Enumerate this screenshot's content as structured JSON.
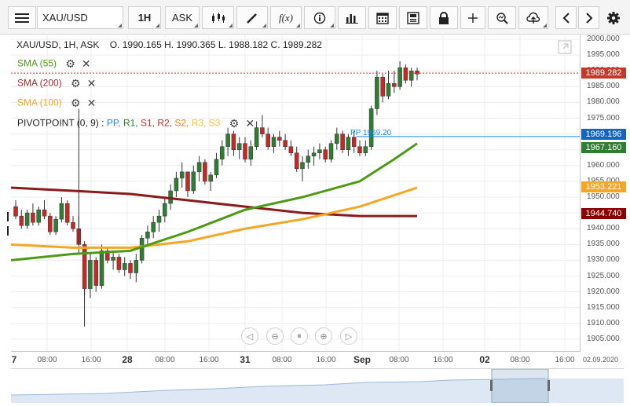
{
  "toolbar": {
    "menu_icon": "hamburger-icon",
    "symbol": "XAU/USD",
    "timeframe": "1H",
    "price_type": "ASK",
    "buttons": [
      "candles-icon",
      "draw-pen-icon",
      "fx-indicators-icon",
      "info-icon",
      "bar-chart-icon",
      "calendar-icon",
      "save-icon",
      "lock-icon",
      "crosshair-icon",
      "zoom-icon",
      "cloud-upload-icon",
      "arrow-left-icon",
      "arrow-right-icon",
      "gear-icon"
    ]
  },
  "legend": {
    "title": "XAU/USD, 1H, ASK",
    "ohlc": "O. 1990.165 H. 1990.365 L. 1988.182 C. 1989.282",
    "indicators": [
      {
        "label": "SMA (55)",
        "color": "#4c9a16"
      },
      {
        "label": "SMA (200)",
        "color": "#a52a2a"
      },
      {
        "label": "SMA (100)",
        "color": "#f5a623"
      }
    ],
    "pivot": {
      "label": "PIVOTPOINT (0, 9)",
      "sep": " : ",
      "parts": [
        {
          "text": "PP",
          "color": "#1e88e5"
        },
        {
          "text": "R1",
          "color": "#2e7d32"
        },
        {
          "text": "S1",
          "color": "#c62828"
        },
        {
          "text": "R2",
          "color": "#c62828"
        },
        {
          "text": "S2",
          "color": "#f57c00"
        },
        {
          "text": "R3",
          "color": "#fbc02d"
        },
        {
          "text": "S3",
          "color": "#fbc02d"
        }
      ]
    },
    "pp_label": "PP 1969.20"
  },
  "price_axis": {
    "ticks": [
      "2000.000",
      "1995.000",
      "1990.000",
      "1985.000",
      "1980.000",
      "1975.000",
      "1970.000",
      "1965.000",
      "1960.000",
      "1955.000",
      "1950.000",
      "1945.000",
      "1940.000",
      "1935.000",
      "1930.000",
      "1925.000",
      "1920.000",
      "1915.000",
      "1910.000",
      "1905.000"
    ],
    "labels": [
      {
        "text": "1989.282",
        "color": "#c0392b"
      },
      {
        "text": "1969.196",
        "color": "#1565c0"
      },
      {
        "text": "1967.160",
        "color": "#2e7d32"
      },
      {
        "text": "1953.221",
        "color": "#f5a623"
      },
      {
        "text": "1944.740",
        "color": "#8b0000"
      }
    ]
  },
  "time_axis": {
    "ticks": [
      {
        "t": "7",
        "major": true
      },
      {
        "t": "08:00",
        "major": false
      },
      {
        "t": "16:00",
        "major": false
      },
      {
        "t": "28",
        "major": true
      },
      {
        "t": "08:00",
        "major": false
      },
      {
        "t": "16:00",
        "major": false
      },
      {
        "t": "31",
        "major": true
      },
      {
        "t": "08:00",
        "major": false
      },
      {
        "t": "16:00",
        "major": false
      },
      {
        "t": "Sep",
        "major": true
      },
      {
        "t": "08:00",
        "major": false
      },
      {
        "t": "16:00",
        "major": false
      },
      {
        "t": "02",
        "major": true
      },
      {
        "t": "08:00",
        "major": false
      },
      {
        "t": "16:00",
        "major": false
      }
    ],
    "corner_date": "02.09.2020"
  },
  "zoom_controls": [
    "chevron-left-icon",
    "zoom-out-icon",
    "fit-icon",
    "zoom-in-icon",
    "chevron-right-icon"
  ],
  "chart_data": {
    "type": "candlestick",
    "ylim": [
      1901,
      2001
    ],
    "candles": [
      [
        1947,
        1949,
        1943,
        1944
      ],
      [
        1944,
        1946,
        1940,
        1941
      ],
      [
        1941,
        1946,
        1940,
        1945
      ],
      [
        1945,
        1948,
        1941,
        1942
      ],
      [
        1942,
        1947,
        1941,
        1946
      ],
      [
        1946,
        1949,
        1943,
        1944
      ],
      [
        1944,
        1945,
        1938,
        1939
      ],
      [
        1939,
        1944,
        1938,
        1943
      ],
      [
        1943,
        1950,
        1942,
        1948
      ],
      [
        1948,
        1949,
        1941,
        1942
      ],
      [
        1942,
        1944,
        1939,
        1940
      ],
      [
        1940,
        1944,
        1932,
        1935
      ],
      [
        1935,
        1936,
        1919,
        1921
      ],
      [
        1921,
        1932,
        1918,
        1930
      ],
      [
        1930,
        1931,
        1920,
        1922
      ],
      [
        1922,
        1935,
        1921,
        1933
      ],
      [
        1933,
        1934,
        1929,
        1930
      ],
      [
        1930,
        1933,
        1927,
        1931
      ],
      [
        1931,
        1932,
        1926,
        1927
      ],
      [
        1927,
        1931,
        1925,
        1929
      ],
      [
        1929,
        1930,
        1924,
        1926
      ],
      [
        1926,
        1932,
        1923,
        1930
      ],
      [
        1930,
        1938,
        1929,
        1937
      ],
      [
        1937,
        1941,
        1935,
        1939
      ],
      [
        1939,
        1944,
        1937,
        1942
      ],
      [
        1942,
        1946,
        1939,
        1944
      ],
      [
        1944,
        1950,
        1942,
        1948
      ],
      [
        1948,
        1954,
        1946,
        1952
      ],
      [
        1952,
        1958,
        1950,
        1956
      ],
      [
        1956,
        1961,
        1953,
        1958
      ],
      [
        1958,
        1957,
        1950,
        1952
      ],
      [
        1952,
        1960,
        1951,
        1958
      ],
      [
        1958,
        1963,
        1955,
        1961
      ],
      [
        1961,
        1962,
        1954,
        1955
      ],
      [
        1955,
        1958,
        1952,
        1957
      ],
      [
        1957,
        1964,
        1956,
        1962
      ],
      [
        1962,
        1968,
        1960,
        1966
      ],
      [
        1966,
        1972,
        1963,
        1970
      ],
      [
        1970,
        1971,
        1963,
        1965
      ],
      [
        1965,
        1969,
        1962,
        1967
      ],
      [
        1967,
        1969,
        1961,
        1962
      ],
      [
        1962,
        1968,
        1960,
        1966
      ],
      [
        1966,
        1974,
        1965,
        1972
      ],
      [
        1972,
        1976,
        1969,
        1970
      ],
      [
        1970,
        1972,
        1965,
        1966
      ],
      [
        1966,
        1970,
        1964,
        1969
      ],
      [
        1969,
        1971,
        1966,
        1968
      ],
      [
        1968,
        1970,
        1965,
        1966
      ],
      [
        1966,
        1968,
        1963,
        1964
      ],
      [
        1964,
        1966,
        1958,
        1959
      ],
      [
        1959,
        1963,
        1955,
        1961
      ],
      [
        1961,
        1965,
        1959,
        1963
      ],
      [
        1963,
        1966,
        1960,
        1964
      ],
      [
        1964,
        1967,
        1962,
        1965
      ],
      [
        1965,
        1966,
        1961,
        1962
      ],
      [
        1962,
        1968,
        1961,
        1967
      ],
      [
        1967,
        1972,
        1965,
        1970
      ],
      [
        1970,
        1971,
        1964,
        1965
      ],
      [
        1965,
        1970,
        1963,
        1969
      ],
      [
        1969,
        1971,
        1964,
        1966
      ],
      [
        1966,
        1968,
        1963,
        1964
      ],
      [
        1964,
        1968,
        1963,
        1966
      ],
      [
        1966,
        1979,
        1965,
        1978
      ],
      [
        1978,
        1990,
        1976,
        1988
      ],
      [
        1988,
        1989,
        1980,
        1982
      ],
      [
        1982,
        1990,
        1981,
        1986
      ],
      [
        1986,
        1990,
        1983,
        1985
      ],
      [
        1985,
        1993,
        1984,
        1991
      ],
      [
        1991,
        1992,
        1986,
        1987
      ],
      [
        1987,
        1991,
        1985,
        1990
      ],
      [
        1990,
        1991,
        1987,
        1989
      ]
    ],
    "sma55": [
      [
        0,
        1930
      ],
      [
        10,
        1932
      ],
      [
        20,
        1933
      ],
      [
        30,
        1939
      ],
      [
        40,
        1946
      ],
      [
        50,
        1950
      ],
      [
        60,
        1955
      ],
      [
        66,
        1962
      ],
      [
        70,
        1967
      ]
    ],
    "sma200": [
      [
        0,
        1953
      ],
      [
        10,
        1952
      ],
      [
        20,
        1951
      ],
      [
        30,
        1949
      ],
      [
        40,
        1947
      ],
      [
        50,
        1945
      ],
      [
        60,
        1944
      ],
      [
        70,
        1944
      ]
    ],
    "sma100": [
      [
        0,
        1935
      ],
      [
        10,
        1934
      ],
      [
        20,
        1934
      ],
      [
        30,
        1936
      ],
      [
        40,
        1940
      ],
      [
        50,
        1943
      ],
      [
        60,
        1947
      ],
      [
        70,
        1953
      ]
    ],
    "pp_value": 1969.2,
    "last_close": 1989.282
  }
}
